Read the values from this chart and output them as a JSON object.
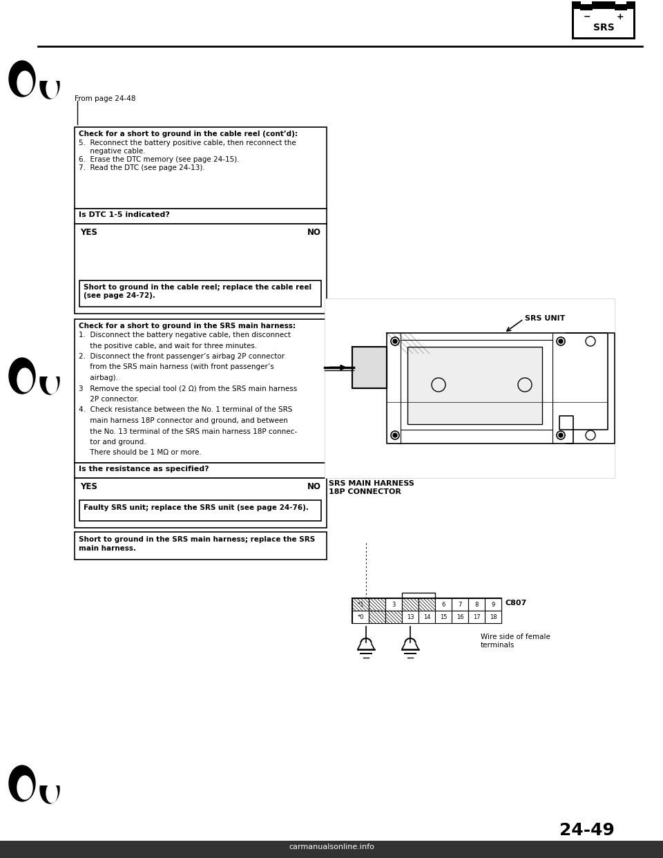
{
  "bg_color": "#ffffff",
  "text_color": "#000000",
  "page_number": "24-49",
  "from_page": "From page 24-48",
  "srs_label": "SRS",
  "box1_title": "Check for a short to ground in the cable reel (cont’d):",
  "box1_line5": "5.  Reconnect the battery positive cable, then reconnect the",
  "box1_line5b": "     negative cable.",
  "box1_line6": "6.  Erase the DTC memory (see page 24-15).",
  "box1_line7": "7.  Read the DTC (see page 24-13).",
  "question1": "Is DTC 1-5 indicated?",
  "yes_label": "YES",
  "no_label": "NO",
  "box2_text_line1": "Short to ground in the cable reel; replace the cable reel",
  "box2_text_line2": "(see page 24-72).",
  "box3_title": "Check for a short to ground in the SRS main harness:",
  "box3_item1a": "1.  Disconnect the battery negative cable, then disconnect",
  "box3_item1b": "     the positive cable, and wait for three minutes.",
  "box3_item2a": "2.  Disconnect the front passenger’s airbag 2P connector",
  "box3_item2b": "     from the SRS main harness (with front passenger’s",
  "box3_item2c": "     airbag).",
  "box3_item3a": "3   Remove the special tool (2 Ω) from the SRS main harness",
  "box3_item3b": "     2P connector.",
  "box3_item4a": "4.  Check resistance between the No. 1 terminal of the SRS",
  "box3_item4b": "     main harness 18P connector and ground, and between",
  "box3_item4c": "     the No. 13 terminal of the SRS main harness 18P connec-",
  "box3_item4d": "     tor and ground.",
  "box3_item4e": "     There should be 1 MΩ or more.",
  "question2": "Is the resistance as specified?",
  "box4_text": "Faulty SRS unit; replace the SRS unit (see page 24-76).",
  "box5_line1": "Short to ground in the SRS main harness; replace the SRS",
  "box5_line2": "main harness.",
  "srs_unit_label": "SRS UNIT",
  "srs_harness_label_line1": "SRS MAIN HARNESS",
  "srs_harness_label_line2": "18P CONNECTOR",
  "c807_label": "C807",
  "wire_label_line1": "Wire side of female",
  "wire_label_line2": "terminals",
  "connector_row1_labels": [
    "*1",
    "",
    "3",
    "",
    "",
    "6",
    "7",
    "8",
    "9"
  ],
  "connector_row2_labels": [
    "*0",
    "",
    "",
    "13",
    "14",
    "15",
    "16",
    "17",
    "18"
  ],
  "connector_row1_hatched": [
    0,
    1,
    3,
    4
  ],
  "connector_row2_hatched": [
    1,
    2
  ],
  "bottom_bar_color": "#333333",
  "bottom_text": "carmanualsonline.info"
}
